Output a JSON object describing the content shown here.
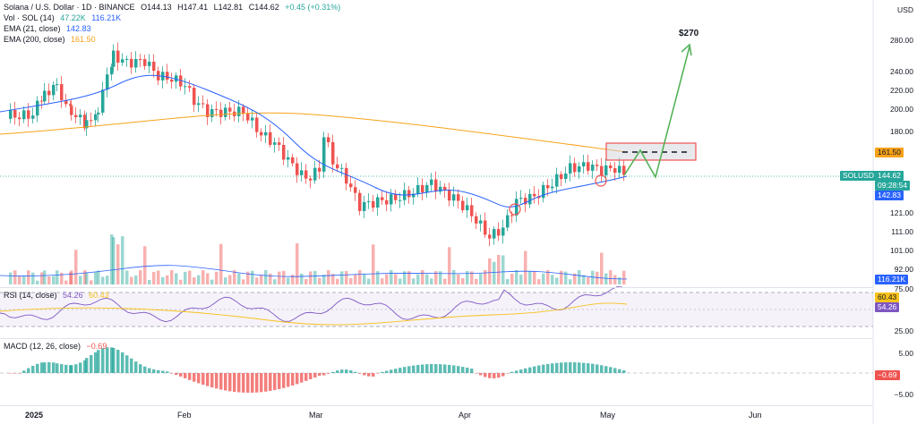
{
  "legend": {
    "title": "Solana / U.S. Dollar · 1D · BINANCE",
    "o": "O144.13",
    "h": "H147.41",
    "l": "L142.81",
    "c": "C144.62",
    "chg": "+0.45 (+0.31%)",
    "vol_label": "Vol · SOL (14)",
    "vol_v1": "47.22K",
    "vol_v2": "116.21K",
    "ema21_label": "EMA (21, close)",
    "ema21_val": "142.83",
    "ema200_label": "EMA (200, close)",
    "ema200_val": "161.50",
    "rsi_label": "RSI (14, close)",
    "rsi_val": "54.26",
    "rsi_ma": "60.43",
    "macd_label": "MACD (12, 26, close)",
    "macd_val": "−0.69"
  },
  "price_axis": {
    "currency": "USD",
    "ticks": [
      "280.00",
      "240.00",
      "220.00",
      "200.00",
      "180.00",
      "121.00",
      "111.00",
      "101.00",
      "92.00"
    ],
    "tag_ema200": "161.50",
    "tag_symbol": "SOLUSD",
    "tag_price": "144.62",
    "tag_countdown": "09:28:54",
    "tag_ema21": "142.83",
    "tag_vol": "116.21K"
  },
  "rsi_axis": {
    "ticks": [
      "75.00",
      "25.00"
    ],
    "tag_ma": "60.43",
    "tag_rsi": "54.26"
  },
  "macd_axis": {
    "ticks": [
      "5.00",
      "−5.00"
    ],
    "tag": "−0.69"
  },
  "time_axis": [
    "2025",
    "Feb",
    "Mar",
    "Apr",
    "May",
    "Jun"
  ],
  "annotation": {
    "target": "$270"
  },
  "colors": {
    "up": "#26a69a",
    "down": "#ef5350",
    "ema21": "#2962ff",
    "ema200": "#f7a21b",
    "rsi": "#7e57c2",
    "arrow": "#4caf50",
    "zone": "#d1d4dc"
  }
}
